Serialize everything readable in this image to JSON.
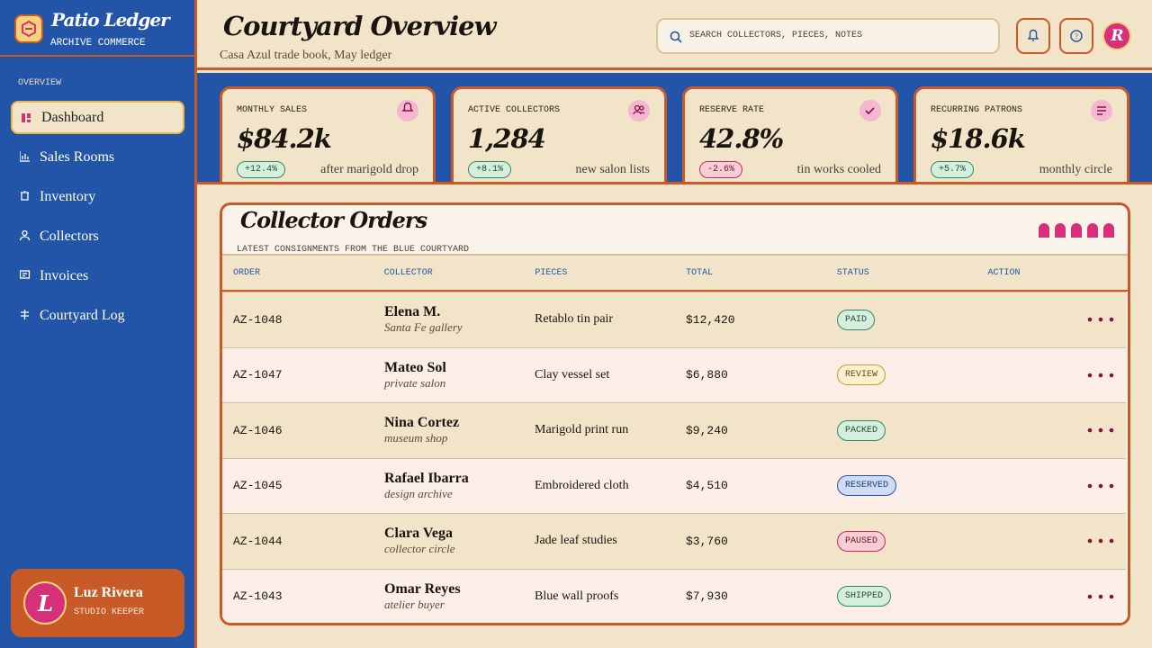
{
  "sidebar": {
    "brand": "Patio Ledger",
    "tagline": "ARCHIVE COMMERCE",
    "section": "OVERVIEW",
    "nav": [
      "Dashboard",
      "Sales Rooms",
      "Inventory",
      "Collectors",
      "Invoices",
      "Courtyard Log"
    ],
    "user": {
      "initial": "L",
      "name": "Luz Rivera",
      "role": "STUDIO KEEPER"
    }
  },
  "header": {
    "title": "Courtyard Overview",
    "subtitle": "Casa Azul trade book, May ledger",
    "search_placeholder": "SEARCH COLLECTORS, PIECES, NOTES",
    "avatar": "R"
  },
  "stats": [
    {
      "label": "MONTHLY SALES",
      "value": "$84.2k",
      "change": "+12.4%",
      "note": "after marigold drop"
    },
    {
      "label": "ACTIVE COLLECTORS",
      "value": "1,284",
      "change": "+8.1%",
      "note": "new salon lists"
    },
    {
      "label": "RESERVE RATE",
      "value": "42.8%",
      "change": "-2.6%",
      "note": "tin works cooled"
    },
    {
      "label": "RECURRING PATRONS",
      "value": "$18.6k",
      "change": "+5.7%",
      "note": "monthly circle"
    }
  ],
  "orders": {
    "title": "Collector Orders",
    "subtitle": "LATEST CONSIGNMENTS FROM THE BLUE COURTYARD",
    "columns": [
      "ORDER",
      "COLLECTOR",
      "PIECES",
      "TOTAL",
      "STATUS",
      "ACTION"
    ],
    "rows": [
      {
        "order": "AZ-1048",
        "collector": "Elena M.",
        "collector_note": "Santa Fe gallery",
        "pieces": "Retablo tin pair",
        "total": "$12,420",
        "status": "PAID"
      },
      {
        "order": "AZ-1047",
        "collector": "Mateo Sol",
        "collector_note": "private salon",
        "pieces": "Clay vessel set",
        "total": "$6,880",
        "status": "REVIEW"
      },
      {
        "order": "AZ-1046",
        "collector": "Nina Cortez",
        "collector_note": "museum shop",
        "pieces": "Marigold print run",
        "total": "$9,240",
        "status": "PACKED"
      },
      {
        "order": "AZ-1045",
        "collector": "Rafael Ibarra",
        "collector_note": "design archive",
        "pieces": "Embroidered cloth",
        "total": "$4,510",
        "status": "RESERVED"
      },
      {
        "order": "AZ-1044",
        "collector": "Clara Vega",
        "collector_note": "collector circle",
        "pieces": "Jade leaf studies",
        "total": "$3,760",
        "status": "PAUSED"
      },
      {
        "order": "AZ-1043",
        "collector": "Omar Reyes",
        "collector_note": "atelier buyer",
        "pieces": "Blue wall proofs",
        "total": "$7,930",
        "status": "SHIPPED"
      }
    ]
  }
}
